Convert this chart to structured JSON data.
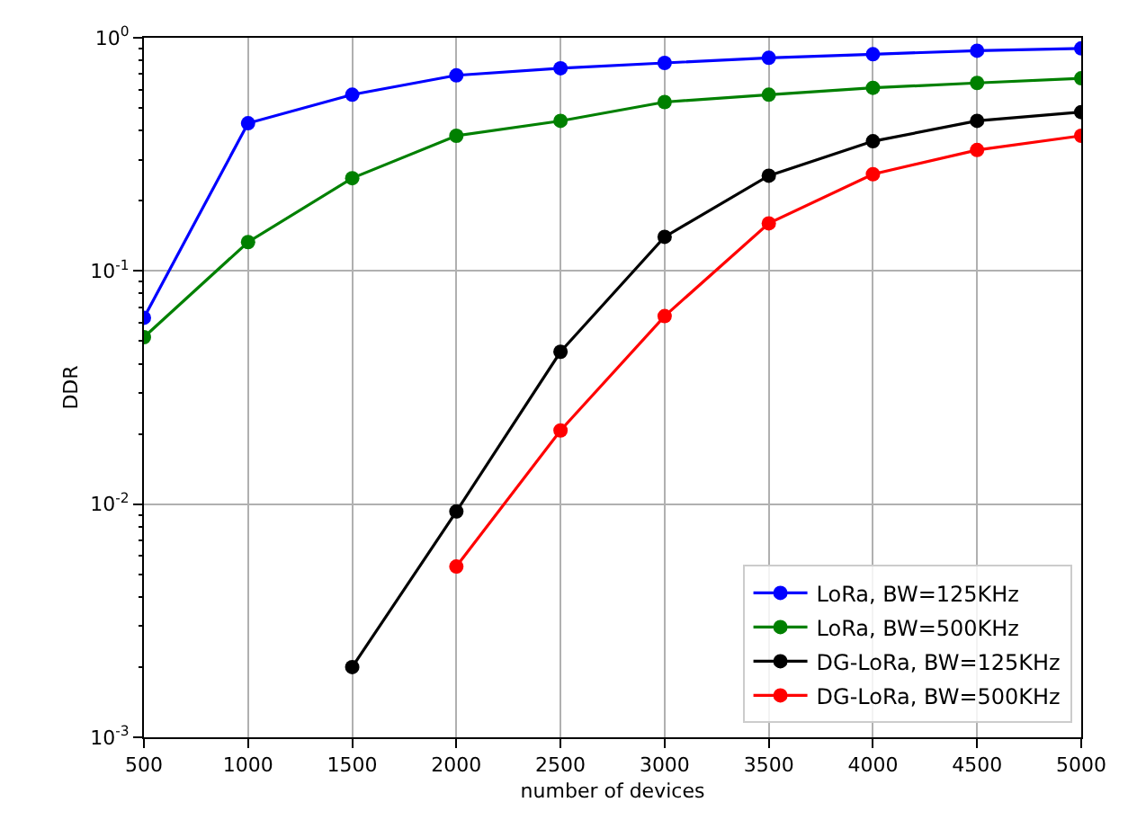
{
  "chart_data": {
    "type": "line",
    "xlabel": "number of devices",
    "ylabel": "DDR",
    "x": [
      500,
      1000,
      1500,
      2000,
      2500,
      3000,
      3500,
      4000,
      4500,
      5000
    ],
    "series": [
      {
        "name": "LoRa, BW=125KHz",
        "color": "#0000ff",
        "values": [
          0.063,
          0.43,
          0.57,
          0.69,
          0.74,
          0.78,
          0.82,
          0.85,
          0.88,
          0.9
        ]
      },
      {
        "name": "LoRa, BW=500KHz",
        "color": "#008000",
        "values": [
          0.052,
          0.133,
          0.25,
          0.38,
          0.44,
          0.53,
          0.57,
          0.61,
          0.64,
          0.67
        ]
      },
      {
        "name": "DG-LoRa, BW=125KHz",
        "color": "#000000",
        "values": [
          null,
          null,
          0.002,
          0.0093,
          0.045,
          0.14,
          0.256,
          0.36,
          0.44,
          0.48
        ]
      },
      {
        "name": "DG-LoRa, BW=500KHz",
        "color": "#ff0000",
        "values": [
          null,
          null,
          null,
          0.0054,
          0.0207,
          0.064,
          0.16,
          0.26,
          0.33,
          0.38
        ]
      }
    ],
    "xlim": [
      500,
      5000
    ],
    "xticks": [
      500,
      1000,
      1500,
      2000,
      2500,
      3000,
      3500,
      4000,
      4500,
      5000
    ],
    "ylim": [
      0.001,
      1
    ],
    "yticks": [
      {
        "value": 0.001,
        "label": "10$^{-3}$"
      },
      {
        "value": 0.01,
        "label": "10$^{-2}$"
      },
      {
        "value": 0.1,
        "label": "10$^{-1}$"
      },
      {
        "value": 1,
        "label": "10$^{0}$"
      }
    ],
    "log": "y",
    "grid": true,
    "legend": "bottom right",
    "marker": "circle",
    "line_style": "solid"
  }
}
